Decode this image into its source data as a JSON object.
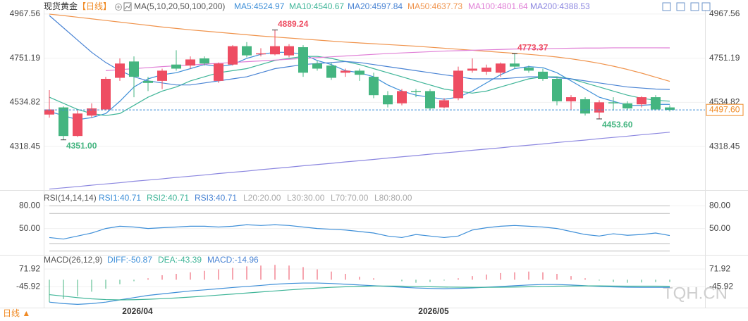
{
  "ui": {
    "period_button": "日线 ▲",
    "watermark": "TQH.CN"
  },
  "chart_data": [
    {
      "type": "candlestick",
      "title": "现货黄金",
      "period": "【日线】",
      "indicator": "MA(5,10,20,50,100,200)",
      "categories": [
        null,
        null,
        null,
        null,
        null,
        null,
        "2026/04",
        null,
        null,
        null,
        null,
        null,
        null,
        null,
        null,
        null,
        null,
        null,
        null,
        null,
        null,
        null,
        null,
        null,
        null,
        null,
        null,
        "2026/05",
        null,
        null,
        null,
        null,
        null,
        null,
        null,
        null,
        null,
        null,
        null,
        null,
        null,
        null,
        null,
        null,
        null
      ],
      "open": [
        4475,
        4510,
        4370,
        4470,
        4500,
        4655,
        4735,
        4640,
        4640,
        4720,
        4715,
        4750,
        4640,
        4720,
        4810,
        4770,
        4770,
        4765,
        4805,
        4725,
        4715,
        4680,
        4690,
        4660,
        4570,
        4530,
        4590,
        4590,
        4510,
        4555,
        4690,
        4685,
        4680,
        4725,
        4705,
        4685,
        4650,
        4540,
        4550,
        4485,
        4535,
        4530,
        4525,
        4560,
        4510
      ],
      "high": [
        4595,
        4515,
        4500,
        4530,
        4660,
        4750,
        4760,
        4660,
        4700,
        4790,
        4760,
        4760,
        4730,
        4815,
        4830,
        4800,
        4889.24,
        4820,
        4815,
        4740,
        4730,
        4700,
        4700,
        4680,
        4590,
        4600,
        4600,
        4600,
        4555,
        4710,
        4750,
        4720,
        4730,
        4773.37,
        4715,
        4700,
        4660,
        4570,
        4560,
        4545,
        4560,
        4540,
        4565,
        4570,
        4520
      ],
      "low": [
        4460,
        4351,
        4365,
        4460,
        4495,
        4640,
        4560,
        4590,
        4600,
        4690,
        4700,
        4715,
        4630,
        4715,
        4755,
        4760,
        4765,
        4755,
        4660,
        4690,
        4645,
        4660,
        4640,
        4555,
        4510,
        4520,
        4560,
        4495,
        4505,
        4545,
        4680,
        4670,
        4660,
        4700,
        4680,
        4640,
        4520,
        4500,
        4470,
        4453.6,
        4495,
        4495,
        4510,
        4495,
        4490
      ],
      "close": [
        4500,
        4370,
        4480,
        4505,
        4650,
        4725,
        4660,
        4630,
        4690,
        4700,
        4745,
        4725,
        4725,
        4810,
        4765,
        4775,
        4810,
        4810,
        4680,
        4700,
        4655,
        4690,
        4670,
        4570,
        4525,
        4590,
        4585,
        4505,
        4545,
        4690,
        4700,
        4705,
        4725,
        4710,
        4690,
        4650,
        4540,
        4560,
        4480,
        4535,
        4530,
        4505,
        4560,
        4500,
        4497.6
      ],
      "high_labels": [
        null,
        null,
        null,
        null,
        null,
        null,
        null,
        null,
        null,
        null,
        null,
        null,
        null,
        null,
        null,
        null,
        "4889.24",
        null,
        null,
        null,
        null,
        null,
        null,
        null,
        null,
        null,
        null,
        null,
        null,
        null,
        null,
        null,
        null,
        "4773.37",
        null,
        null,
        null,
        null,
        null,
        null,
        null,
        null,
        null,
        null,
        null
      ],
      "low_labels": [
        null,
        "4351.00",
        null,
        null,
        null,
        null,
        null,
        null,
        null,
        null,
        null,
        null,
        null,
        null,
        null,
        null,
        null,
        null,
        null,
        null,
        null,
        null,
        null,
        null,
        null,
        null,
        null,
        null,
        null,
        null,
        null,
        null,
        null,
        null,
        null,
        null,
        null,
        null,
        null,
        "4453.60",
        null,
        null,
        null,
        null,
        null
      ],
      "up_color": "#ee4d62",
      "down_color": "#44b580",
      "last": 4497.6,
      "last_label": "4497.60",
      "last_color": "#f08a24",
      "ylim": [
        4105,
        4988
      ],
      "yticks": [
        4967.56,
        4751.19,
        4534.82,
        4318.45
      ],
      "series": [
        {
          "name": "MA5:4524.97",
          "color": "#3e8fd8",
          "values": [
            4490,
            4470,
            4450,
            4460,
            4480,
            4540,
            4610,
            4650,
            4670,
            4680,
            4700,
            4720,
            4710,
            4720,
            4750,
            4770,
            4780,
            4780,
            4770,
            4740,
            4720,
            4690,
            4680,
            4660,
            4620,
            4590,
            4570,
            4560,
            4550,
            4560,
            4590,
            4630,
            4670,
            4700,
            4710,
            4705,
            4680,
            4640,
            4600,
            4560,
            4540,
            4520,
            4520,
            4525,
            4524.97
          ]
        },
        {
          "name": "MA10:4540.67",
          "color": "#3fb598",
          "values": [
            4560,
            4530,
            4500,
            4480,
            4470,
            4480,
            4520,
            4560,
            4590,
            4610,
            4640,
            4660,
            4680,
            4690,
            4700,
            4720,
            4740,
            4750,
            4760,
            4760,
            4750,
            4735,
            4720,
            4700,
            4680,
            4660,
            4640,
            4620,
            4600,
            4590,
            4580,
            4590,
            4610,
            4630,
            4650,
            4660,
            4660,
            4650,
            4630,
            4610,
            4590,
            4570,
            4555,
            4545,
            4540.67
          ]
        },
        {
          "name": "MA20:4597.84",
          "color": "#4a84d4",
          "values": [
            4960,
            4900,
            4840,
            4780,
            4730,
            4690,
            4660,
            4640,
            4630,
            4620,
            4620,
            4630,
            4640,
            4650,
            4660,
            4680,
            4700,
            4710,
            4720,
            4725,
            4730,
            4735,
            4730,
            4720,
            4710,
            4700,
            4690,
            4680,
            4670,
            4660,
            4650,
            4650,
            4650,
            4655,
            4660,
            4660,
            4655,
            4650,
            4640,
            4630,
            4620,
            4610,
            4605,
            4600,
            4597.84
          ]
        },
        {
          "name": "MA50:4637.73",
          "color": "#f0944d",
          "values": [
            4967,
            4960,
            4952,
            4944,
            4936,
            4928,
            4920,
            4912,
            4904,
            4897,
            4890,
            4884,
            4878,
            4872,
            4866,
            4860,
            4855,
            4850,
            4845,
            4840,
            4835,
            4830,
            4826,
            4822,
            4818,
            4814,
            4810,
            4805,
            4800,
            4795,
            4790,
            4785,
            4780,
            4775,
            4770,
            4764,
            4757,
            4748,
            4738,
            4726,
            4712,
            4696,
            4678,
            4658,
            4637.73
          ]
        },
        {
          "name": "MA100:4801.64",
          "color": "#e07fd6",
          "values": [
            null,
            null,
            null,
            null,
            4690,
            4695,
            4700,
            4705,
            4710,
            4714,
            4718,
            4722,
            4726,
            4730,
            4734,
            4738,
            4742,
            4746,
            4750,
            4754,
            4758,
            4762,
            4766,
            4770,
            4774,
            4777,
            4780,
            4783,
            4786,
            4788,
            4790,
            4792,
            4794,
            4796,
            4797,
            4798,
            4799,
            4800,
            4801,
            4801,
            4802,
            4802,
            4802,
            4802,
            4801.64
          ]
        },
        {
          "name": "MA200:4388.53",
          "color": "#8c87e0",
          "values": [
            4110,
            4116,
            4122,
            4129,
            4135,
            4141,
            4148,
            4154,
            4160,
            4167,
            4173,
            4179,
            4186,
            4192,
            4198,
            4205,
            4211,
            4217,
            4224,
            4230,
            4236,
            4243,
            4249,
            4255,
            4262,
            4268,
            4274,
            4281,
            4287,
            4293,
            4300,
            4306,
            4312,
            4319,
            4325,
            4331,
            4338,
            4344,
            4350,
            4357,
            4363,
            4369,
            4376,
            4382,
            4388.53
          ]
        }
      ]
    },
    {
      "type": "line",
      "title": "RSI(14,14,14)",
      "ylim": [
        15,
        88
      ],
      "yticks": [
        {
          "value": 80,
          "label": "80.00"
        },
        {
          "value": 50,
          "label": "50.00"
        }
      ],
      "levels": [
        {
          "value": 20,
          "label": "L20:20.00"
        },
        {
          "value": 30,
          "label": "L30:30.00"
        },
        {
          "value": 70,
          "label": "L70:70.00"
        },
        {
          "value": 80,
          "label": "L80:80.00"
        }
      ],
      "level_color": "#bbbbbb",
      "series": [
        {
          "name": "RSI1:40.71",
          "color": "#3e8fd8",
          "values": [
            38,
            36,
            40,
            44,
            50,
            53,
            52,
            50,
            51,
            52,
            53,
            53,
            52,
            53,
            55,
            54,
            55,
            54,
            52,
            50,
            49,
            48,
            46,
            44,
            40,
            38,
            42,
            40,
            38,
            40,
            48,
            51,
            53,
            54,
            53,
            52,
            50,
            46,
            42,
            40,
            43,
            41,
            42,
            44,
            40.71
          ]
        },
        {
          "name": "RSI2:40.71",
          "color": "#3fb598"
        },
        {
          "name": "RSI3:40.71",
          "color": "#4a84d4"
        }
      ]
    },
    {
      "type": "macd",
      "title": "MACD(26,12,9)",
      "value_name": "MACD:-14.96",
      "value_color": "#4a84d4",
      "ylim": [
        -187,
        120
      ],
      "yticks": [
        71.92,
        -45.92
      ],
      "up_color": "#ee4d62",
      "down_color": "#44b580",
      "values": [
        -150,
        -130,
        -110,
        -80,
        -60,
        -30,
        -10,
        10,
        30,
        40,
        50,
        60,
        70,
        80,
        90,
        95,
        100,
        95,
        85,
        70,
        55,
        40,
        20,
        10,
        0,
        -10,
        -20,
        -15,
        -5,
        10,
        25,
        35,
        45,
        50,
        55,
        50,
        40,
        25,
        10,
        -5,
        -15,
        -20,
        -18,
        -16,
        -14.96
      ],
      "series": [
        {
          "name": "DIFF:-50.87",
          "color": "#3e8fd8",
          "values": [
            -150,
            -160,
            -165,
            -160,
            -150,
            -135,
            -120,
            -105,
            -95,
            -85,
            -75,
            -68,
            -60,
            -52,
            -45,
            -38,
            -30,
            -25,
            -22,
            -22,
            -25,
            -30,
            -35,
            -40,
            -45,
            -50,
            -55,
            -58,
            -60,
            -58,
            -55,
            -50,
            -45,
            -40,
            -35,
            -32,
            -32,
            -35,
            -40,
            -45,
            -48,
            -50,
            -51,
            -51,
            -50.87
          ]
        },
        {
          "name": "DEA:-43.39",
          "color": "#3fb598",
          "values": [
            -100,
            -110,
            -120,
            -128,
            -133,
            -135,
            -134,
            -131,
            -127,
            -122,
            -116,
            -110,
            -103,
            -96,
            -89,
            -82,
            -75,
            -68,
            -62,
            -56,
            -51,
            -47,
            -44,
            -42,
            -42,
            -43,
            -45,
            -47,
            -49,
            -50,
            -51,
            -51,
            -50,
            -49,
            -47,
            -45,
            -43,
            -42,
            -41,
            -41,
            -42,
            -43,
            -43,
            -43,
            -43.39
          ]
        }
      ]
    }
  ]
}
